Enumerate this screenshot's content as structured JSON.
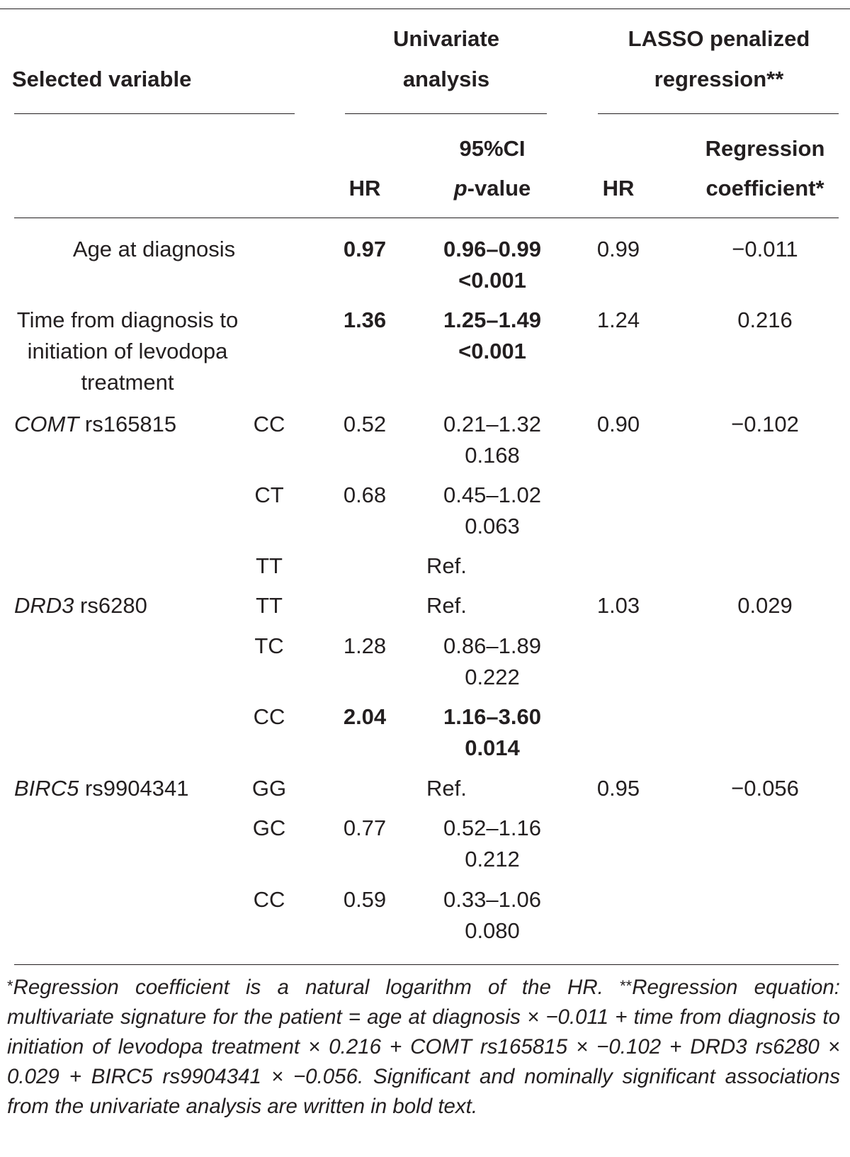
{
  "table": {
    "header": {
      "selected_variable": "Selected variable",
      "univariate_line1": "Univariate",
      "univariate_line2": "analysis",
      "lasso_line1": "LASSO penalized",
      "lasso_line2": "regression**",
      "hr_univariate": "HR",
      "ci_label": "95%CI",
      "pvalue_italic": "p",
      "pvalue_rest": "-value",
      "hr_lasso": "HR",
      "coef_line1": "Regression",
      "coef_line2": "coefficient*"
    },
    "rows": [
      {
        "variable": "Age at diagnosis",
        "genotype": "",
        "hr": "0.97",
        "ci": "0.96–0.99",
        "p": "<0.001",
        "lasso_hr": "0.99",
        "coef": "−0.011",
        "bold": true
      },
      {
        "variable_lines": [
          "Time from diagnosis to",
          "initiation of levodopa",
          "treatment"
        ],
        "genotype": "",
        "hr": "1.36",
        "ci": "1.25–1.49",
        "p": "<0.001",
        "lasso_hr": "1.24",
        "coef": "0.216",
        "bold": true
      },
      {
        "gene": "COMT",
        "snp": "rs165815",
        "genotype": "CC",
        "hr": "0.52",
        "ci": "0.21–1.32",
        "p": "0.168",
        "lasso_hr": "0.90",
        "coef": "−0.102"
      },
      {
        "genotype": "CT",
        "hr": "0.68",
        "ci": "0.45–1.02",
        "p": "0.063"
      },
      {
        "genotype": "TT",
        "ref": "Ref."
      },
      {
        "gene": "DRD3",
        "snp": "rs6280",
        "genotype": "TT",
        "ref": "Ref.",
        "lasso_hr": "1.03",
        "coef": "0.029"
      },
      {
        "genotype": "TC",
        "hr": "1.28",
        "ci": "0.86–1.89",
        "p": "0.222"
      },
      {
        "genotype": "CC",
        "hr": "2.04",
        "ci": "1.16–3.60",
        "p": "0.014",
        "bold": true
      },
      {
        "gene": "BIRC5",
        "snp": "rs9904341",
        "genotype": "GG",
        "ref": "Ref.",
        "lasso_hr": "0.95",
        "coef": "−0.056"
      },
      {
        "genotype": "GC",
        "hr": "0.77",
        "ci": "0.52–1.16",
        "p": "0.212"
      },
      {
        "genotype": "CC",
        "hr": "0.59",
        "ci": "0.33–1.06",
        "p": "0.080"
      }
    ]
  },
  "footnote": {
    "star": "*",
    "s1": "Regression coefficient is a natural logarithm of the HR. ",
    "dstar": "**",
    "s2": "Regression equation: multivariate signature for the patient = age at diagnosis × −0.011 + time from diagnosis to initiation of levodopa treatment × 0.216 + COMT rs165815 × −0.102 + DRD3 rs6280 × 0.029 + BIRC5 rs9904341 × −0.056. Significant and nominally significant associations from the univariate analysis are written in bold text."
  }
}
